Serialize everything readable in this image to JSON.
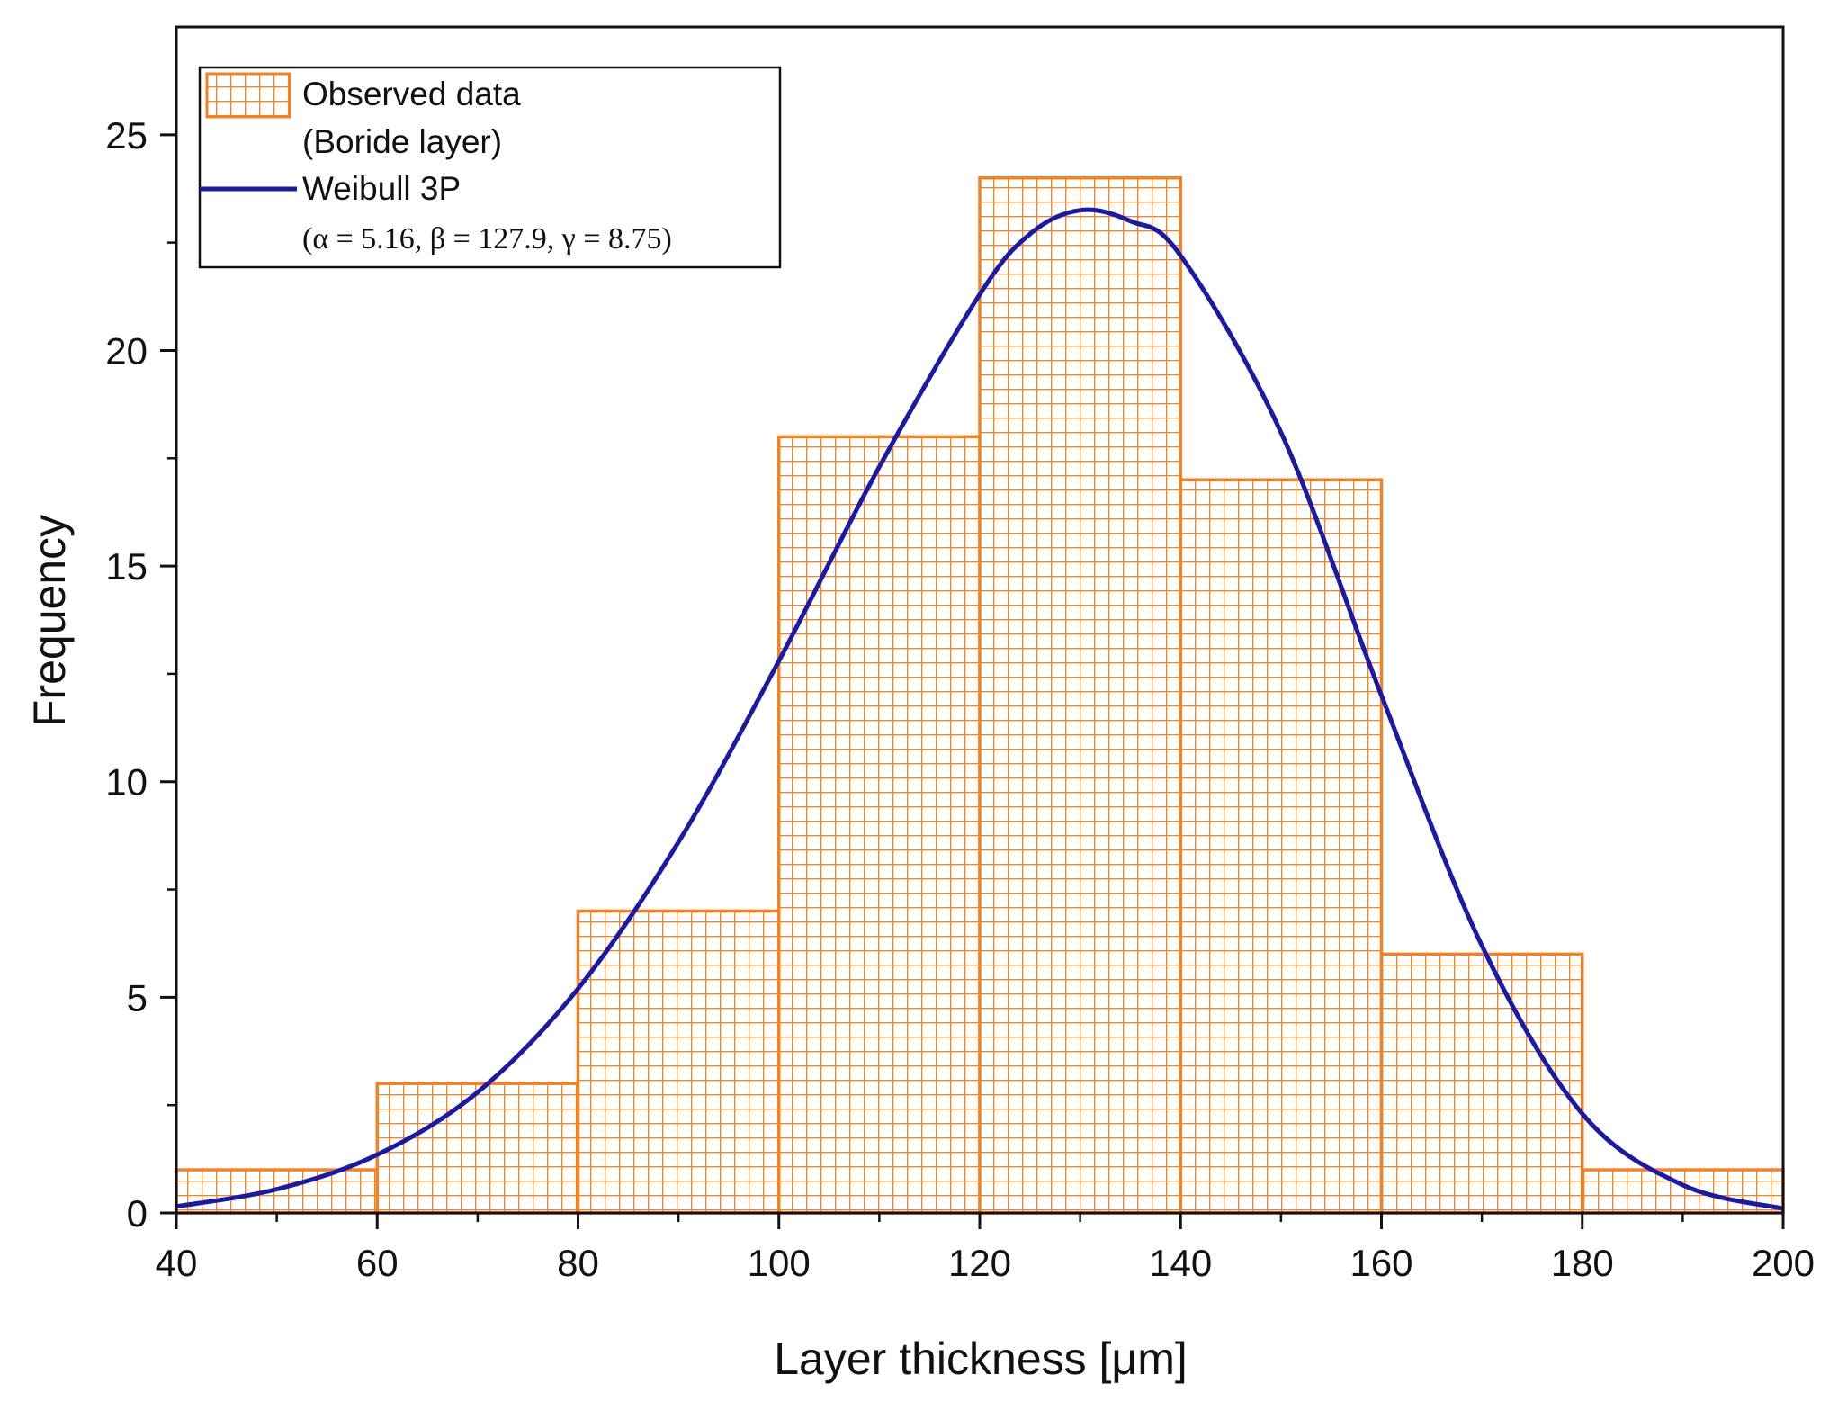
{
  "chart_data": {
    "type": "bar",
    "title": "",
    "xlabel": "Layer thickness [μm]",
    "ylabel": "Frequency",
    "xlim": [
      40,
      200
    ],
    "ylim": [
      0,
      27.5
    ],
    "x_ticks": [
      40,
      60,
      80,
      100,
      120,
      140,
      160,
      180,
      200
    ],
    "y_ticks": [
      0,
      5,
      10,
      15,
      20,
      25
    ],
    "grid": false,
    "legend_position": "top-left",
    "series": [
      {
        "name": "Observed data (Boride layer)",
        "type": "histogram",
        "bins": [
          {
            "start": 40,
            "end": 60,
            "value": 1
          },
          {
            "start": 60,
            "end": 80,
            "value": 3
          },
          {
            "start": 80,
            "end": 100,
            "value": 7
          },
          {
            "start": 100,
            "end": 120,
            "value": 18
          },
          {
            "start": 120,
            "end": 140,
            "value": 24
          },
          {
            "start": 140,
            "end": 160,
            "value": 17
          },
          {
            "start": 160,
            "end": 180,
            "value": 6
          },
          {
            "start": 180,
            "end": 200,
            "value": 1
          }
        ]
      },
      {
        "name": "Weibull 3P",
        "type": "line",
        "params": {
          "alpha": 5.16,
          "beta": 127.9,
          "gamma": 8.75
        },
        "x": [
          40,
          50,
          60,
          70,
          80,
          90,
          100,
          110,
          120,
          125,
          130,
          135,
          140,
          150,
          160,
          170,
          180,
          190,
          200
        ],
        "y": [
          0.15,
          0.55,
          1.35,
          2.8,
          5.2,
          8.6,
          12.8,
          17.3,
          21.3,
          22.7,
          23.25,
          23.0,
          22.2,
          18.1,
          12.0,
          6.2,
          2.3,
          0.65,
          0.1
        ]
      }
    ]
  },
  "legend": {
    "observed_line1": "Observed data",
    "observed_line2": "(Boride layer)",
    "fit_line1": "Weibull 3P",
    "fit_params": "(α = 5.16, β = 127.9, γ = 8.75)"
  },
  "colors": {
    "bar_stroke": "#F58220",
    "bar_fill": "#ffffff",
    "curve": "#1A1AA6",
    "axis": "#111111"
  }
}
